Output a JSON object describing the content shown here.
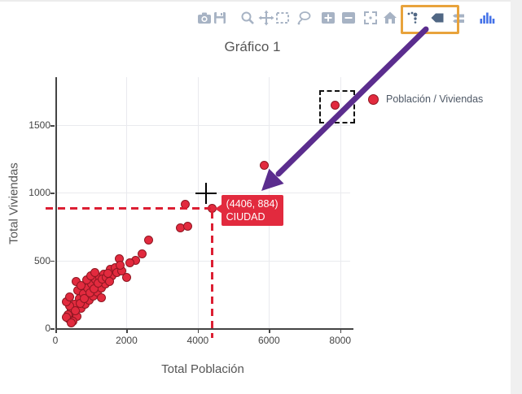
{
  "colors": {
    "icon_light": "#a7b3c4",
    "icon_dark": "#506784",
    "logo_blue": "#4472e8",
    "toolbar_highlight": "#e8a33c",
    "arrow_purple": "#5b2d8e",
    "marker_fill": "#e22a3e",
    "marker_outline": "#8e1722",
    "spike_red": "#dc1f33",
    "tooltip_bg": "#e22a3e"
  },
  "toolbar": {
    "icons": [
      {
        "name": "camera-icon",
        "tooltip": "download-plot"
      },
      {
        "name": "save-icon",
        "tooltip": "save"
      },
      {
        "name": "zoom-icon",
        "tooltip": "zoom"
      },
      {
        "name": "pan-icon",
        "tooltip": "pan"
      },
      {
        "name": "box-select-icon",
        "tooltip": "box-select"
      },
      {
        "name": "lasso-select-icon",
        "tooltip": "lasso-select"
      },
      {
        "name": "zoom-in-icon",
        "tooltip": "zoom-in"
      },
      {
        "name": "zoom-out-icon",
        "tooltip": "zoom-out"
      },
      {
        "name": "autoscale-icon",
        "tooltip": "autoscale"
      },
      {
        "name": "home-icon",
        "tooltip": "reset-axes"
      },
      {
        "name": "hover-closest-icon",
        "tooltip": "show-closest-data-on-hover",
        "highlighted": true
      },
      {
        "name": "hover-compare-icon",
        "tooltip": "compare-data-on-hover",
        "highlighted": true
      },
      {
        "name": "spikelines-icon",
        "tooltip": "toggle-spike-lines"
      },
      {
        "name": "plotly-logo-icon",
        "tooltip": "plotly-logo"
      }
    ]
  },
  "legend": {
    "label": "Población / Viviendas"
  },
  "chart_data": {
    "type": "scatter",
    "title": "Gráfico 1",
    "xlabel": "Total Población",
    "ylabel": "Total Viviendas",
    "x_ticks": [
      0,
      2000,
      4000,
      6000,
      8000
    ],
    "y_ticks": [
      0,
      500,
      1000,
      1500
    ],
    "xlim": [
      0,
      8280
    ],
    "ylim": [
      0,
      1854
    ],
    "grid": true,
    "legend_position": "right-top",
    "series": [
      {
        "name": "Población / Viviendas",
        "color": "#e22a3e",
        "marker_outline": "#8e1722",
        "points": [
          [
            503,
            114
          ],
          [
            617,
            84
          ],
          [
            389,
            66
          ],
          [
            731,
            144
          ],
          [
            846,
            174
          ],
          [
            960,
            204
          ],
          [
            1074,
            234
          ],
          [
            1189,
            263
          ],
          [
            1303,
            293
          ],
          [
            1417,
            323
          ],
          [
            686,
            216
          ],
          [
            549,
            174
          ],
          [
            457,
            132
          ],
          [
            640,
            275
          ],
          [
            800,
            251
          ],
          [
            914,
            293
          ],
          [
            1029,
            323
          ],
          [
            1143,
            353
          ],
          [
            1257,
            371
          ],
          [
            1371,
            395
          ],
          [
            1554,
            431
          ],
          [
            1691,
            443
          ],
          [
            503,
            48
          ],
          [
            366,
            96
          ],
          [
            411,
            162
          ],
          [
            594,
            341
          ],
          [
            731,
            311
          ],
          [
            891,
            353
          ],
          [
            1006,
            383
          ],
          [
            1120,
            407
          ],
          [
            320,
            78
          ],
          [
            457,
            36
          ],
          [
            571,
            126
          ],
          [
            709,
            180
          ],
          [
            823,
            216
          ],
          [
            983,
            257
          ],
          [
            1097,
            287
          ],
          [
            1211,
            329
          ],
          [
            1326,
            359
          ],
          [
            1440,
            371
          ],
          [
            1600,
            383
          ],
          [
            1737,
            407
          ],
          [
            1874,
            419
          ],
          [
            320,
            192
          ],
          [
            411,
            228
          ],
          [
            2629,
            647
          ],
          [
            2446,
            545
          ],
          [
            2263,
            497
          ],
          [
            2103,
            479
          ],
          [
            1806,
            509
          ],
          [
            1829,
            461
          ],
          [
            2011,
            371
          ],
          [
            1486,
            401
          ],
          [
            1531,
            341
          ],
          [
            1303,
            222
          ],
          [
            3520,
            736
          ],
          [
            3726,
            748
          ],
          [
            3657,
            910
          ],
          [
            5874,
            1203
          ]
        ]
      }
    ],
    "hover_point": {
      "x": 4406,
      "y": 884,
      "line1": "(4406, 884)",
      "line2": "CIUDAD"
    },
    "selected_point": {
      "x": 7863,
      "y": 1647
    }
  }
}
